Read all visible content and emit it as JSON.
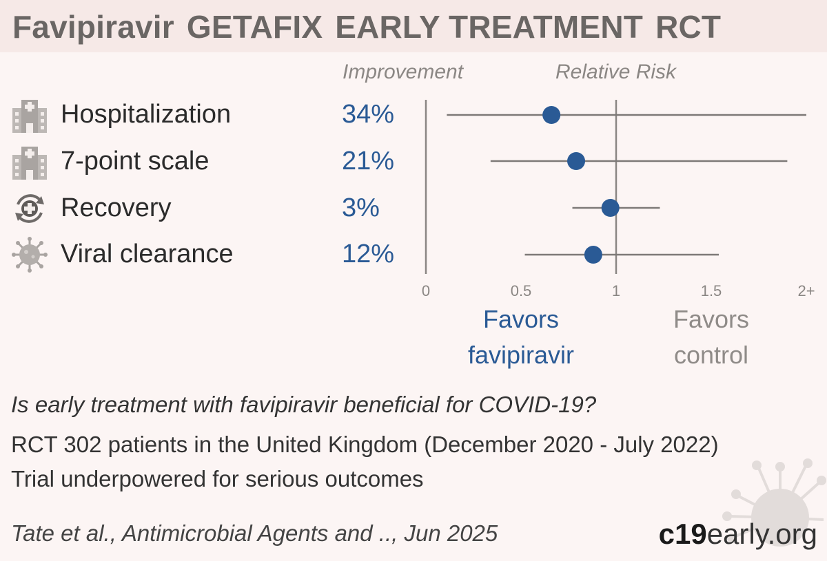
{
  "header": {
    "title_parts": [
      "Favipiravir",
      "GETAFIX",
      "EARLY TREATMENT",
      "RCT"
    ]
  },
  "columns": {
    "improvement": "Improvement",
    "relative_risk": "Relative Risk"
  },
  "outcomes": [
    {
      "label": "Hospitalization",
      "improvement": "34%",
      "icon": "hospital-icon"
    },
    {
      "label": "7-point scale",
      "improvement": "21%",
      "icon": "hospital-icon"
    },
    {
      "label": "Recovery",
      "improvement": "3%",
      "icon": "recovery-icon"
    },
    {
      "label": "Viral clearance",
      "improvement": "12%",
      "icon": "virus-icon"
    }
  ],
  "chart_data": {
    "type": "forest",
    "x_tick_labels": [
      "0",
      "0.5",
      "1",
      "1.5",
      "2+"
    ],
    "x_ticks": [
      0,
      0.5,
      1,
      1.5,
      2
    ],
    "xlim": [
      0,
      2
    ],
    "reference_line": 1,
    "rows": [
      {
        "outcome": "Hospitalization",
        "rr": 0.66,
        "ci_low": 0.11,
        "ci_high": 2.0
      },
      {
        "outcome": "7-point scale",
        "rr": 0.79,
        "ci_low": 0.34,
        "ci_high": 1.9
      },
      {
        "outcome": "Recovery",
        "rr": 0.97,
        "ci_low": 0.77,
        "ci_high": 1.23
      },
      {
        "outcome": "Viral clearance",
        "rr": 0.88,
        "ci_low": 0.52,
        "ci_high": 1.54
      }
    ],
    "colors": {
      "point": "#2a5a95",
      "line": "#7d7977",
      "axis": "#8a8683"
    }
  },
  "favors": {
    "left_line1": "Favors",
    "left_line2": "favipiravir",
    "right_line1": "Favors",
    "right_line2": "control"
  },
  "summary": {
    "question": "Is early treatment with favipiravir beneficial for COVID-19?",
    "design": "RCT 302 patients in the United Kingdom (December 2020 - July 2022)",
    "note": "Trial underpowered for serious outcomes"
  },
  "citation": "Tate et al., Antimicrobial Agents and .., Jun 2025",
  "logo": {
    "strong": "c19",
    "light": "early.org"
  }
}
